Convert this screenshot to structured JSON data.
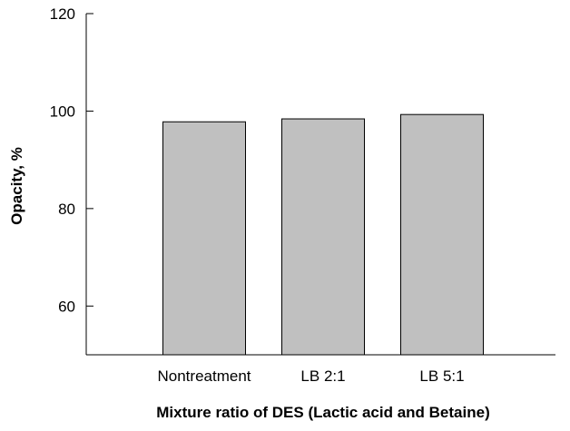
{
  "chart_data": {
    "type": "bar",
    "title": "",
    "xlabel": "Mixture ratio of DES (Lactic acid and Betaine)",
    "ylabel": "Opacity, %",
    "categories": [
      "Nontreatment",
      "LB 2:1",
      "LB 5:1"
    ],
    "series": [
      {
        "values": [
          97.8,
          98.4,
          99.3
        ]
      }
    ],
    "ylim": [
      50,
      120
    ],
    "yticks": [
      "60",
      "80",
      "100",
      "120"
    ],
    "grid": false,
    "legend": "none",
    "colors": {
      "bar_fill": "#c0c0c0",
      "bar_stroke": "#000000",
      "axis": "#000000"
    }
  }
}
